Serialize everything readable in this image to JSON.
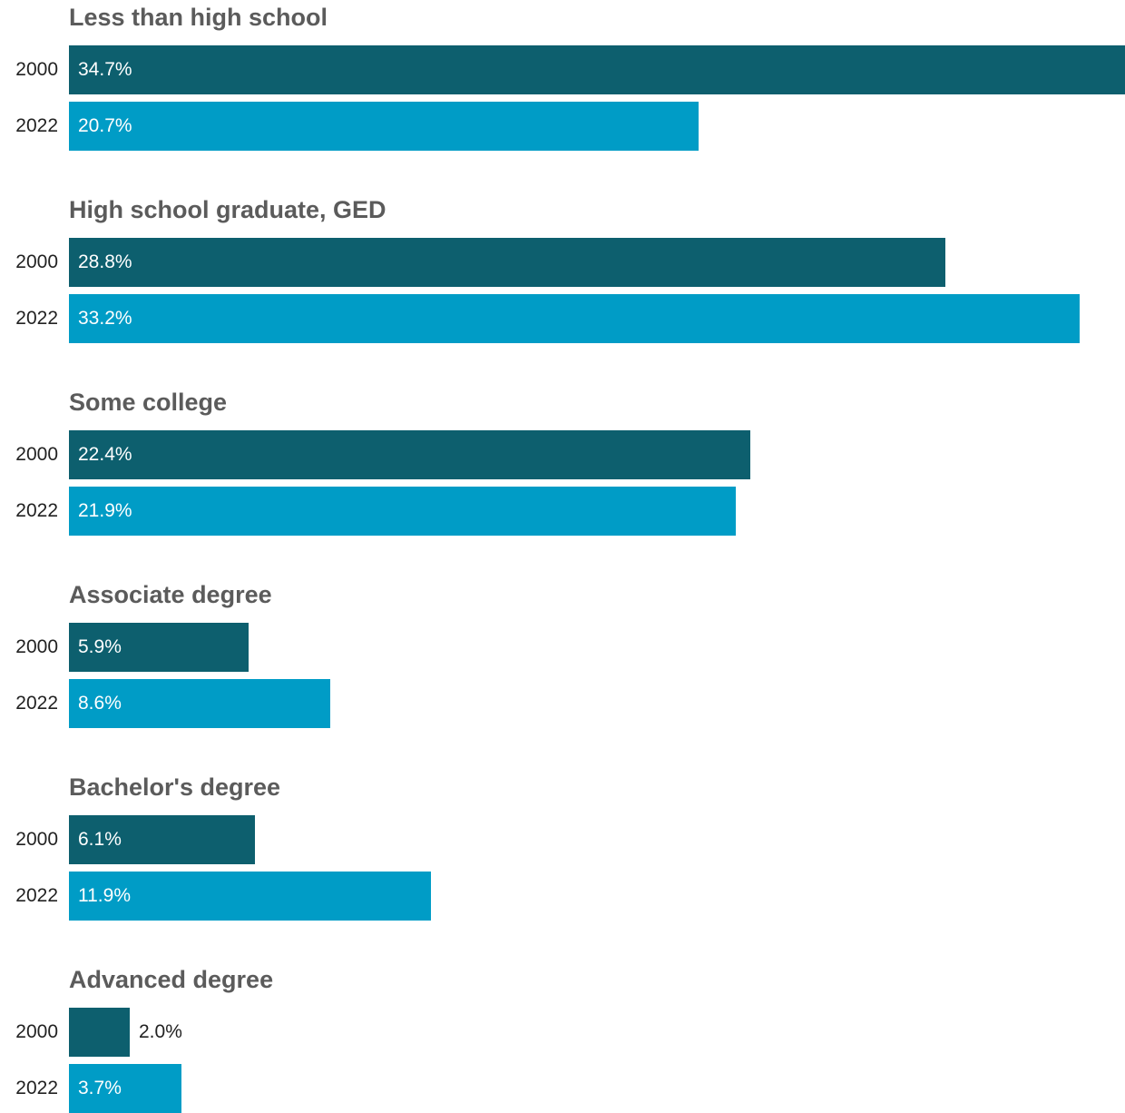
{
  "chart_data": {
    "type": "bar",
    "orientation": "horizontal",
    "title": "",
    "xlabel": "",
    "ylabel": "",
    "xlim": [
      0,
      34.7
    ],
    "grid": false,
    "legend": "none",
    "unit_suffix": "%",
    "series": [
      {
        "key": "2000",
        "color": "#0d5f6e"
      },
      {
        "key": "2022",
        "color": "#009cc6"
      }
    ],
    "groups": [
      {
        "title": "Less than high school",
        "bars": [
          {
            "year": "2000",
            "value": 34.7,
            "label": "34.7%"
          },
          {
            "year": "2022",
            "value": 20.7,
            "label": "20.7%"
          }
        ]
      },
      {
        "title": "High school graduate, GED",
        "bars": [
          {
            "year": "2000",
            "value": 28.8,
            "label": "28.8%"
          },
          {
            "year": "2022",
            "value": 33.2,
            "label": "33.2%"
          }
        ]
      },
      {
        "title": "Some college",
        "bars": [
          {
            "year": "2000",
            "value": 22.4,
            "label": "22.4%"
          },
          {
            "year": "2022",
            "value": 21.9,
            "label": "21.9%"
          }
        ]
      },
      {
        "title": "Associate degree",
        "bars": [
          {
            "year": "2000",
            "value": 5.9,
            "label": "5.9%"
          },
          {
            "year": "2022",
            "value": 8.6,
            "label": "8.6%"
          }
        ]
      },
      {
        "title": "Bachelor's degree",
        "bars": [
          {
            "year": "2000",
            "value": 6.1,
            "label": "6.1%"
          },
          {
            "year": "2022",
            "value": 11.9,
            "label": "11.9%"
          }
        ]
      },
      {
        "title": "Advanced degree",
        "bars": [
          {
            "year": "2000",
            "value": 2.0,
            "label": "2.0%"
          },
          {
            "year": "2022",
            "value": 3.7,
            "label": "3.7%"
          }
        ]
      }
    ]
  }
}
